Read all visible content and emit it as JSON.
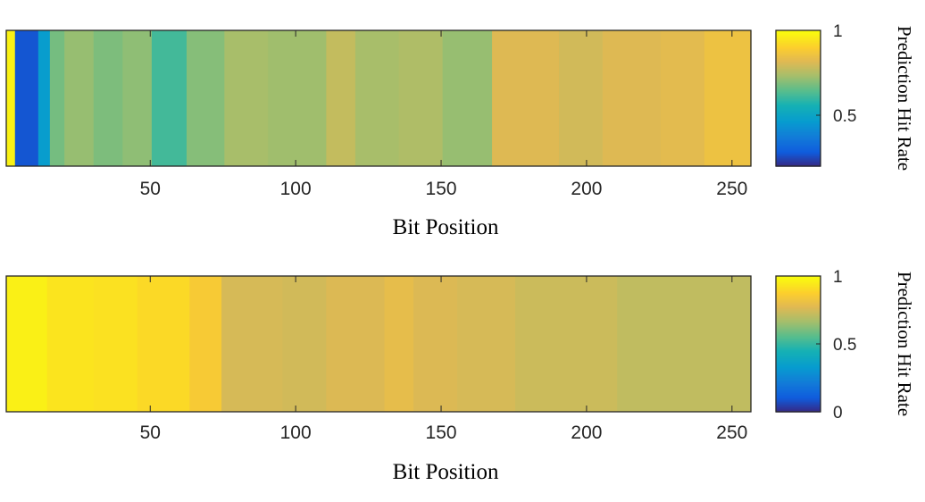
{
  "chart_data": [
    {
      "type": "heatmap",
      "xlabel": "Bit Position",
      "colorbar_label": "Prediction Hit Rate",
      "xlim": [
        1,
        256
      ],
      "xticks": [
        50,
        100,
        150,
        200,
        250
      ],
      "color_range": [
        0.2,
        1
      ],
      "colorbar_ticks": [
        0.5,
        1
      ],
      "segments": [
        {
          "from": 1,
          "to": 3,
          "value": 0.98
        },
        {
          "from": 4,
          "to": 11,
          "value": 0.27
        },
        {
          "from": 12,
          "to": 15,
          "value": 0.47
        },
        {
          "from": 16,
          "to": 20,
          "value": 0.68
        },
        {
          "from": 21,
          "to": 30,
          "value": 0.72
        },
        {
          "from": 31,
          "to": 40,
          "value": 0.69
        },
        {
          "from": 41,
          "to": 50,
          "value": 0.71
        },
        {
          "from": 51,
          "to": 62,
          "value": 0.62
        },
        {
          "from": 63,
          "to": 75,
          "value": 0.7
        },
        {
          "from": 76,
          "to": 90,
          "value": 0.74
        },
        {
          "from": 91,
          "to": 110,
          "value": 0.73
        },
        {
          "from": 111,
          "to": 120,
          "value": 0.78
        },
        {
          "from": 121,
          "to": 135,
          "value": 0.74
        },
        {
          "from": 136,
          "to": 150,
          "value": 0.75
        },
        {
          "from": 151,
          "to": 167,
          "value": 0.72
        },
        {
          "from": 168,
          "to": 190,
          "value": 0.82
        },
        {
          "from": 191,
          "to": 205,
          "value": 0.8
        },
        {
          "from": 206,
          "to": 225,
          "value": 0.82
        },
        {
          "from": 226,
          "to": 240,
          "value": 0.83
        },
        {
          "from": 241,
          "to": 256,
          "value": 0.86
        }
      ]
    },
    {
      "type": "heatmap",
      "xlabel": "Bit Position",
      "colorbar_label": "Prediction Hit Rate",
      "xlim": [
        1,
        256
      ],
      "xticks": [
        50,
        100,
        150,
        200,
        250
      ],
      "color_range": [
        0,
        1
      ],
      "colorbar_ticks": [
        0,
        0.5,
        1
      ],
      "segments": [
        {
          "from": 1,
          "to": 14,
          "value": 0.97
        },
        {
          "from": 15,
          "to": 30,
          "value": 0.94
        },
        {
          "from": 31,
          "to": 45,
          "value": 0.93
        },
        {
          "from": 46,
          "to": 63,
          "value": 0.91
        },
        {
          "from": 64,
          "to": 74,
          "value": 0.86
        },
        {
          "from": 75,
          "to": 95,
          "value": 0.76
        },
        {
          "from": 96,
          "to": 110,
          "value": 0.75
        },
        {
          "from": 111,
          "to": 130,
          "value": 0.77
        },
        {
          "from": 131,
          "to": 140,
          "value": 0.8
        },
        {
          "from": 141,
          "to": 155,
          "value": 0.77
        },
        {
          "from": 156,
          "to": 175,
          "value": 0.76
        },
        {
          "from": 176,
          "to": 210,
          "value": 0.74
        },
        {
          "from": 211,
          "to": 256,
          "value": 0.72
        }
      ]
    }
  ]
}
